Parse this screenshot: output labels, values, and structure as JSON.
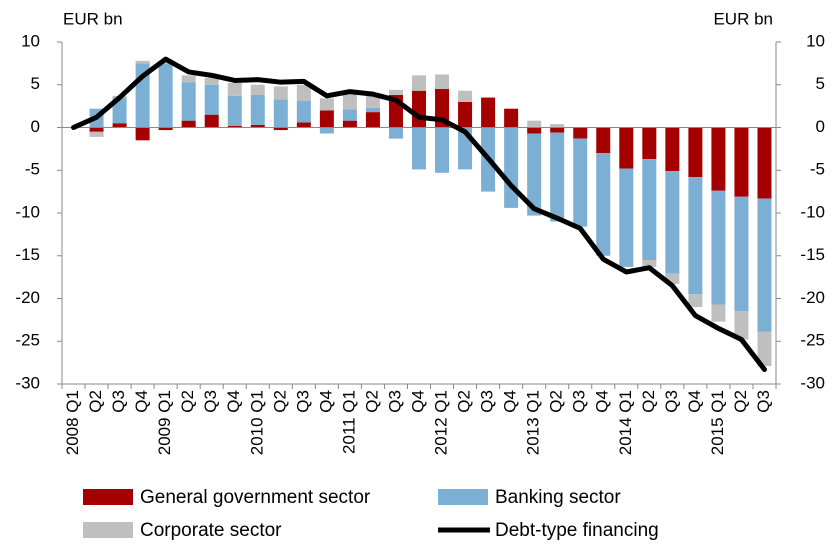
{
  "chart_data": {
    "type": "bar_line",
    "y_label": "EUR bn",
    "y2_label": "EUR bn",
    "categories": [
      "2008 Q1",
      "Q2",
      "Q3",
      "Q4",
      "2009 Q1",
      "Q2",
      "Q3",
      "Q4",
      "2010 Q1",
      "Q2",
      "Q3",
      "Q4",
      "2011 Q1",
      "Q2",
      "Q3",
      "Q4",
      "2012 Q1",
      "Q2",
      "Q3",
      "Q4",
      "2013 Q1",
      "Q2",
      "Q3",
      "Q4",
      "2014 Q1",
      "Q2",
      "Q3",
      "Q4",
      "2015 Q1",
      "Q2",
      "Q3"
    ],
    "series": [
      {
        "name": "General government sector",
        "color": "#a50000",
        "kind": "bar",
        "values": [
          0,
          -0.5,
          0.5,
          -1.5,
          -0.3,
          0.8,
          1.5,
          0.2,
          0.3,
          -0.3,
          0.6,
          2.0,
          0.8,
          1.8,
          3.8,
          4.3,
          4.5,
          3.0,
          3.5,
          2.2,
          -0.7,
          -0.6,
          -1.3,
          -3.0,
          -4.8,
          -3.7,
          -5.1,
          -5.8,
          -7.4,
          -8.1,
          -8.3
        ]
      },
      {
        "name": "Banking sector",
        "color": "#7bafd4",
        "kind": "bar",
        "values": [
          0,
          2.2,
          3.0,
          7.5,
          7.5,
          4.5,
          3.5,
          3.5,
          3.5,
          3.3,
          2.5,
          -0.7,
          1.3,
          0.5,
          -1.3,
          -4.9,
          -5.3,
          -4.9,
          -7.5,
          -9.4,
          -9.6,
          -10.4,
          -10.3,
          -12.0,
          -11.5,
          -11.8,
          -12.0,
          -13.7,
          -13.3,
          -13.4,
          -15.6
        ]
      },
      {
        "name": "Corporate sector",
        "color": "#bfbfbf",
        "kind": "bar",
        "values": [
          0,
          -0.6,
          0.2,
          0.3,
          0.3,
          0.8,
          0.8,
          1.5,
          1.2,
          1.5,
          1.9,
          1.4,
          1.8,
          1.6,
          0.6,
          1.8,
          1.7,
          1.3,
          0,
          0,
          0.8,
          0.4,
          0,
          0,
          0,
          -0.8,
          -1.2,
          -1.5,
          -2.0,
          -3.3,
          -4.0
        ]
      },
      {
        "name": "Debt-type financing",
        "color": "#000000",
        "kind": "line",
        "values": [
          0,
          1.2,
          3.5,
          6.0,
          8.0,
          6.5,
          6.1,
          5.5,
          5.6,
          5.3,
          5.4,
          3.7,
          4.2,
          3.9,
          3.2,
          1.2,
          0.9,
          -0.5,
          -3.6,
          -6.8,
          -9.5,
          -10.6,
          -11.8,
          -15.4,
          -16.9,
          -16.4,
          -18.5,
          -22.0,
          -23.5,
          -24.8,
          -28.3
        ]
      }
    ],
    "ylim": [
      -30,
      10
    ],
    "yticks": [
      -30,
      -25,
      -20,
      -15,
      -10,
      -5,
      0,
      5,
      10
    ],
    "y2lim": [
      -30,
      10
    ],
    "y2ticks": [
      -30,
      -25,
      -20,
      -15,
      -10,
      -5,
      0,
      5,
      10
    ]
  }
}
